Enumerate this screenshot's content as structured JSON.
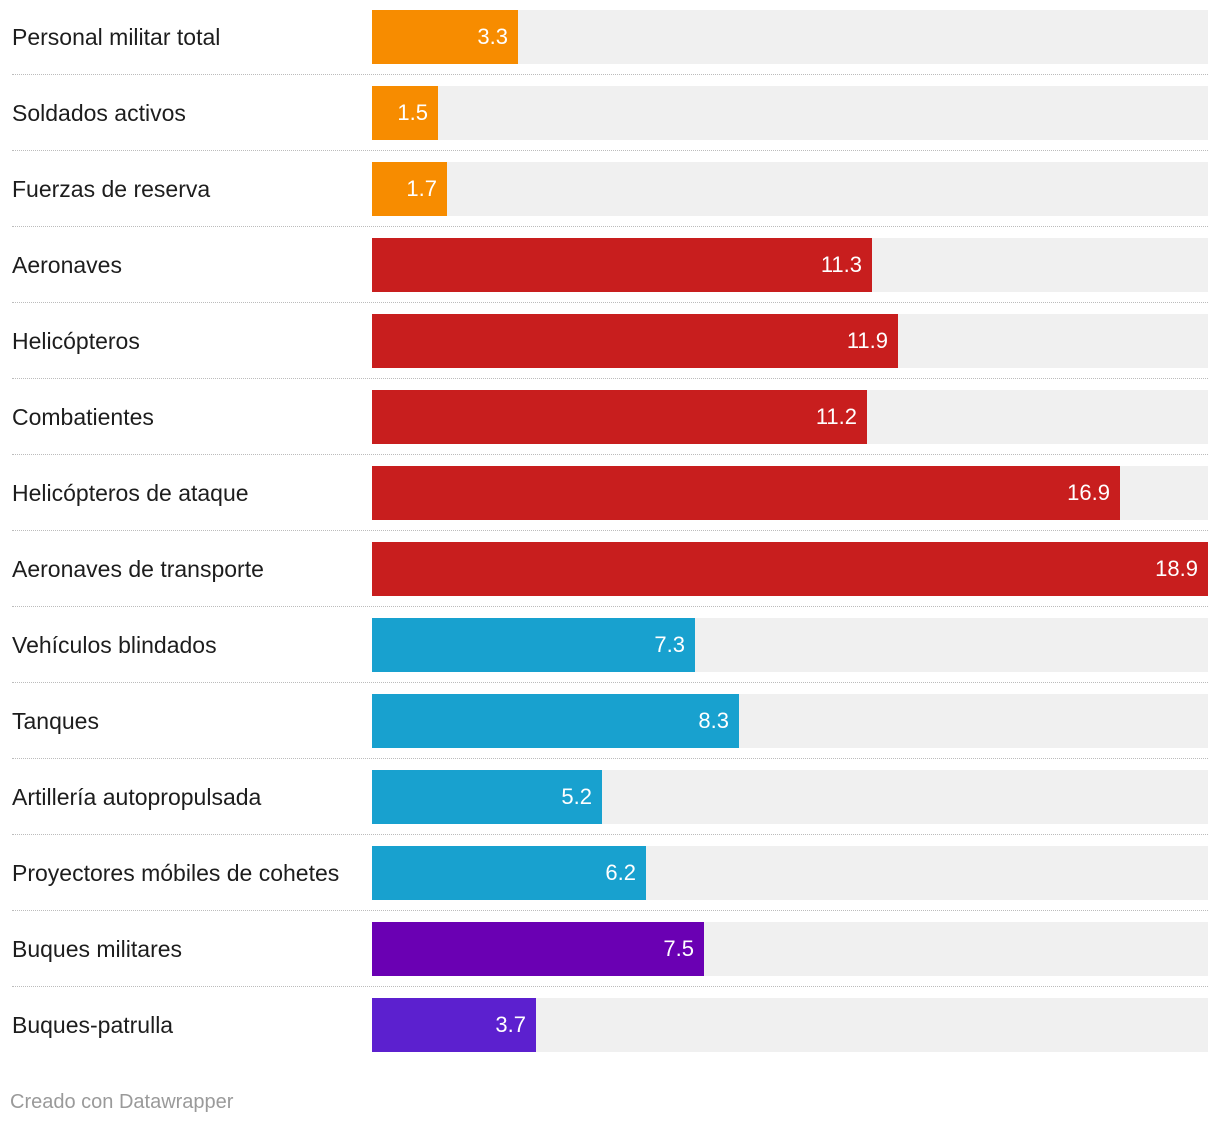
{
  "chart_data": {
    "type": "bar",
    "orientation": "horizontal",
    "title": "",
    "xlabel": "",
    "ylabel": "",
    "xlim": [
      0,
      18.9
    ],
    "categories": [
      "Personal militar total",
      "Soldados activos",
      "Fuerzas de reserva",
      "Aeronaves",
      "Helicópteros",
      "Combatientes",
      "Helicópteros de ataque",
      "Aeronaves de transporte",
      "Vehículos blindados",
      "Tanques",
      "Artillería autopropulsada",
      "Proyectores móbiles de cohetes",
      "Buques militares",
      "Buques-patrulla"
    ],
    "values": [
      3.3,
      1.5,
      1.7,
      11.3,
      11.9,
      11.2,
      16.9,
      18.9,
      7.3,
      8.3,
      5.2,
      6.2,
      7.5,
      3.7
    ],
    "value_labels": [
      "3.3",
      "1.5",
      "1.7",
      "11.3",
      "11.9",
      "11.2",
      "16.9",
      "18.9",
      "7.3",
      "8.3",
      "5.2",
      "6.2",
      "7.5",
      "3.7"
    ],
    "bar_colors": [
      "#f78c00",
      "#f78c00",
      "#f78c00",
      "#c81e1e",
      "#c81e1e",
      "#c81e1e",
      "#c81e1e",
      "#c81e1e",
      "#18a1cf",
      "#18a1cf",
      "#18a1cf",
      "#18a1cf",
      "#6a00b3",
      "#5c20cf"
    ],
    "track_color": "#f0f0f0",
    "grid": false,
    "legend": "none"
  },
  "footer": {
    "credit": "Creado con Datawrapper"
  }
}
